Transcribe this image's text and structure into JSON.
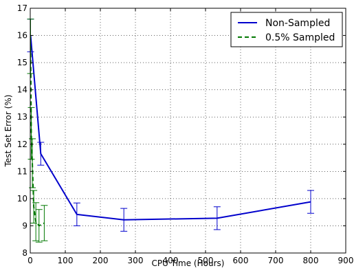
{
  "chart_data": {
    "type": "line",
    "title": "",
    "xlabel": "CPU Time (Hours)",
    "ylabel": "Test Set Error (%)",
    "xlim": [
      0,
      900
    ],
    "ylim": [
      8,
      17
    ],
    "x_ticks": [
      0,
      100,
      200,
      300,
      400,
      500,
      600,
      700,
      800,
      900
    ],
    "y_ticks": [
      8,
      9,
      10,
      11,
      12,
      13,
      14,
      15,
      16,
      17
    ],
    "grid": true,
    "legend_position": "top-right",
    "series": [
      {
        "name": "Non-Sampled",
        "color": "#0000cc",
        "style": "solid",
        "x": [
          1,
          30,
          133,
          267,
          533,
          800
        ],
        "y": [
          16.0,
          11.65,
          9.42,
          9.22,
          9.28,
          9.88
        ],
        "error": [
          0.6,
          0.42,
          0.42,
          0.42,
          0.42,
          0.42
        ]
      },
      {
        "name": "0.5% Sampled",
        "color": "#007700",
        "style": "dashed",
        "x": [
          1,
          3,
          6,
          10,
          16,
          25,
          40
        ],
        "y": [
          15.6,
          12.4,
          11.3,
          9.7,
          9.15,
          9.0,
          9.1
        ],
        "error": [
          1.0,
          0.95,
          0.9,
          0.6,
          0.7,
          0.6,
          0.65
        ]
      }
    ]
  }
}
